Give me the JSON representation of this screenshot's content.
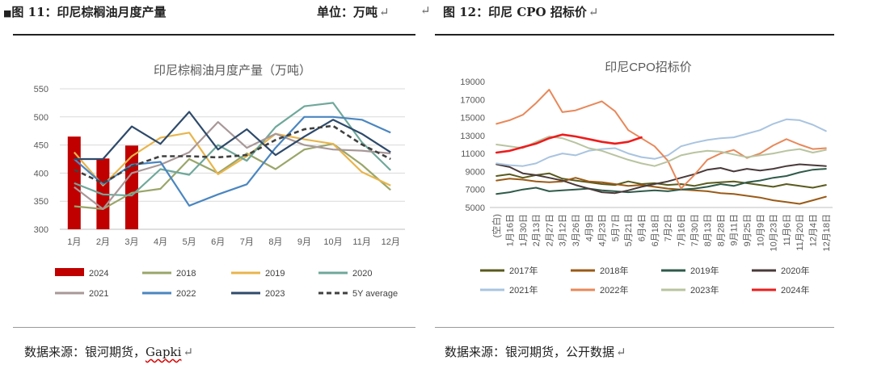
{
  "left_figure": {
    "caption": "图 11：印尼棕榈油月度产量",
    "unit": "单位：万吨",
    "source_prefix": "数据来源：银河期货，",
    "source_brand": "Gapki",
    "chart_data": {
      "type": "bar+line",
      "title": "印尼棕榈油月度产量（万吨）",
      "categories": [
        "1月",
        "2月",
        "3月",
        "4月",
        "5月",
        "6月",
        "7月",
        "8月",
        "9月",
        "10月",
        "11月",
        "12月"
      ],
      "ylim": [
        300,
        550
      ],
      "yticks": [
        300,
        350,
        400,
        450,
        500,
        550
      ],
      "bar_series": {
        "name": "2024",
        "color": "#c00000",
        "values": [
          465,
          426,
          449
        ]
      },
      "series": [
        {
          "name": "2018",
          "color": "#9aa56a",
          "values": [
            341,
            336,
            365,
            372,
            425,
            400,
            435,
            407,
            442,
            452,
            415,
            370
          ]
        },
        {
          "name": "2019",
          "color": "#e8b54c",
          "values": [
            437,
            378,
            430,
            463,
            472,
            398,
            430,
            470,
            460,
            452,
            402,
            378
          ]
        },
        {
          "name": "2020",
          "color": "#6fa89a",
          "values": [
            382,
            362,
            360,
            407,
            397,
            450,
            422,
            482,
            519,
            525,
            455,
            405
          ]
        },
        {
          "name": "2021",
          "color": "#a89898",
          "values": [
            375,
            336,
            400,
            415,
            437,
            491,
            445,
            470,
            450,
            442,
            440,
            435
          ]
        },
        {
          "name": "2022",
          "color": "#4a86c0",
          "values": [
            425,
            380,
            415,
            420,
            342,
            362,
            380,
            445,
            500,
            500,
            495,
            472
          ]
        },
        {
          "name": "2023",
          "color": "#2e4a6b",
          "values": [
            425,
            425,
            483,
            452,
            509,
            442,
            478,
            432,
            465,
            495,
            470,
            437
          ]
        },
        {
          "name": "5Y average",
          "color": "#404040",
          "dashed": true,
          "values": [
            406,
            382,
            412,
            430,
            430,
            428,
            432,
            459,
            478,
            484,
            451,
            425
          ]
        }
      ]
    }
  },
  "right_figure": {
    "caption": "图 12：印尼 CPO 招标价",
    "source": "数据来源：银河期货，公开数据",
    "chart_data": {
      "type": "line",
      "title": "印尼CPO招标价",
      "ylim": [
        5000,
        19000
      ],
      "yticks": [
        5000,
        7000,
        9000,
        11000,
        13000,
        15000,
        17000,
        19000
      ],
      "xticks": [
        "(空白)",
        "1月16日",
        "1月30日",
        "2月13日",
        "2月27日",
        "3月12日",
        "3月26日",
        "4月9日",
        "4月23日",
        "5月7日",
        "5月21日",
        "6月4日",
        "6月18日",
        "7月2日",
        "7月16日",
        "7月30日",
        "8月13日",
        "8月28日",
        "9月11日",
        "9月25日",
        "10月9日",
        "10月23日",
        "11月6日",
        "11月20日",
        "12月4日",
        "12月18日"
      ],
      "series": [
        {
          "name": "2017年",
          "color": "#5a5a1e",
          "values": [
            8500,
            8700,
            8300,
            8600,
            8800,
            8200,
            8000,
            7800,
            7600,
            7500,
            7900,
            7600,
            7700,
            7500,
            7600,
            7400,
            7700,
            7800,
            7900,
            7700,
            7500,
            7300,
            7600,
            7400,
            7200,
            7500
          ]
        },
        {
          "name": "2018年",
          "color": "#9a5a16",
          "values": [
            8000,
            8200,
            8100,
            7900,
            7800,
            7900,
            8300,
            7900,
            7800,
            7600,
            7400,
            7500,
            7300,
            7100,
            7000,
            6900,
            6800,
            6600,
            6500,
            6300,
            6100,
            5800,
            5600,
            5400,
            5800,
            6200
          ]
        },
        {
          "name": "2019年",
          "color": "#2f5a4a",
          "values": [
            6500,
            6700,
            7000,
            7200,
            6800,
            6900,
            7000,
            7100,
            6900,
            6800,
            6700,
            6800,
            6900,
            6800,
            7000,
            7100,
            7300,
            7600,
            7400,
            7800,
            8000,
            8300,
            8500,
            8900,
            9200,
            9300
          ]
        },
        {
          "name": "2020年",
          "color": "#4a3a3a",
          "values": [
            9800,
            9500,
            8800,
            8600,
            8300,
            8000,
            7500,
            7100,
            6700,
            6600,
            6900,
            7300,
            7600,
            7900,
            8300,
            8700,
            9200,
            9400,
            9000,
            9300,
            9100,
            9300,
            9600,
            9800,
            9700,
            9600
          ]
        },
        {
          "name": "2021年",
          "color": "#a9c4e0",
          "values": [
            9900,
            9700,
            9600,
            9900,
            10600,
            11000,
            10800,
            11300,
            11500,
            11600,
            11000,
            10600,
            10400,
            10800,
            11800,
            12200,
            12500,
            12700,
            12800,
            13200,
            13600,
            14300,
            14800,
            14700,
            14200,
            13500
          ]
        },
        {
          "name": "2022年",
          "color": "#e8885a",
          "values": [
            14300,
            14700,
            15300,
            16600,
            18100,
            15600,
            15800,
            16300,
            16800,
            15700,
            13600,
            12700,
            11800,
            10200,
            7100,
            8600,
            10300,
            11000,
            11400,
            10500,
            11000,
            11900,
            12600,
            12000,
            11500,
            11600
          ]
        },
        {
          "name": "2023年",
          "color": "#b8c4a0",
          "values": [
            12000,
            11800,
            11600,
            12300,
            12900,
            12700,
            12200,
            11600,
            11300,
            10800,
            10300,
            9900,
            9600,
            10100,
            10800,
            11100,
            11300,
            11200,
            10900,
            10600,
            10800,
            11000,
            11300,
            11500,
            11100,
            11400
          ]
        },
        {
          "name": "2024年",
          "color": "#ee1c1c",
          "values": [
            11100,
            11300,
            11700,
            12100,
            12700,
            13100,
            12900,
            12600,
            12300,
            12100,
            12300,
            12800
          ]
        }
      ]
    }
  }
}
